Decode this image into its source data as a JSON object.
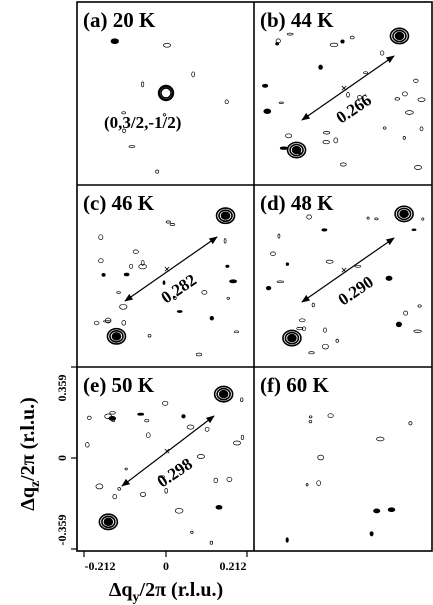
{
  "figure": {
    "panels": [
      {
        "label": "(a) 20 K",
        "peak_label": "(0,3/2,-1/2)",
        "separation": ""
      },
      {
        "label": "(b) 44 K",
        "peak_label": "",
        "separation": "0.266"
      },
      {
        "label": "(c) 46 K",
        "peak_label": "",
        "separation": "0.282"
      },
      {
        "label": "(d) 48 K",
        "peak_label": "",
        "separation": "0.290"
      },
      {
        "label": "(e) 50 K",
        "peak_label": "",
        "separation": "0.298"
      },
      {
        "label": "(f) 60 K",
        "peak_label": "",
        "separation": ""
      }
    ],
    "y_axis": {
      "label_main": "Δq",
      "label_sub": "z",
      "label_rest": "/2π (r.l.u.)",
      "ticks": [
        "0.359",
        "0",
        "-0.359"
      ]
    },
    "x_axis": {
      "label_main": "Δq",
      "label_sub": "y",
      "label_rest": "/2π (r.l.u.)",
      "ticks": [
        "-0.212",
        "0",
        "0.212"
      ]
    }
  },
  "chart_data": {
    "type": "scatter",
    "title": "",
    "xlabel": "Δqy/2π (r.l.u.)",
    "ylabel": "Δqz/2π (r.l.u.)",
    "xlim": [
      -0.212,
      0.212
    ],
    "ylim": [
      -0.359,
      0.359
    ],
    "panels": [
      {
        "label": "(a) 20 K",
        "temperature_K": 20,
        "peaks": [
          [
            0,
            0
          ]
        ],
        "separation": null
      },
      {
        "label": "(b) 44 K",
        "temperature_K": 44,
        "peaks": [
          [
            -0.133,
            -0.225
          ],
          [
            0.133,
            0.225
          ]
        ],
        "separation": 0.266
      },
      {
        "label": "(c) 46 K",
        "temperature_K": 46,
        "peaks": [
          [
            -0.141,
            -0.238
          ],
          [
            0.141,
            0.238
          ]
        ],
        "separation": 0.282
      },
      {
        "label": "(d) 48 K",
        "temperature_K": 48,
        "peaks": [
          [
            -0.145,
            -0.245
          ],
          [
            0.145,
            0.245
          ]
        ],
        "separation": 0.29
      },
      {
        "label": "(e) 50 K",
        "temperature_K": 50,
        "peaks": [
          [
            -0.149,
            -0.252
          ],
          [
            0.149,
            0.252
          ]
        ],
        "separation": 0.298
      },
      {
        "label": "(f) 60 K",
        "temperature_K": 60,
        "peaks": [],
        "separation": null
      }
    ]
  }
}
